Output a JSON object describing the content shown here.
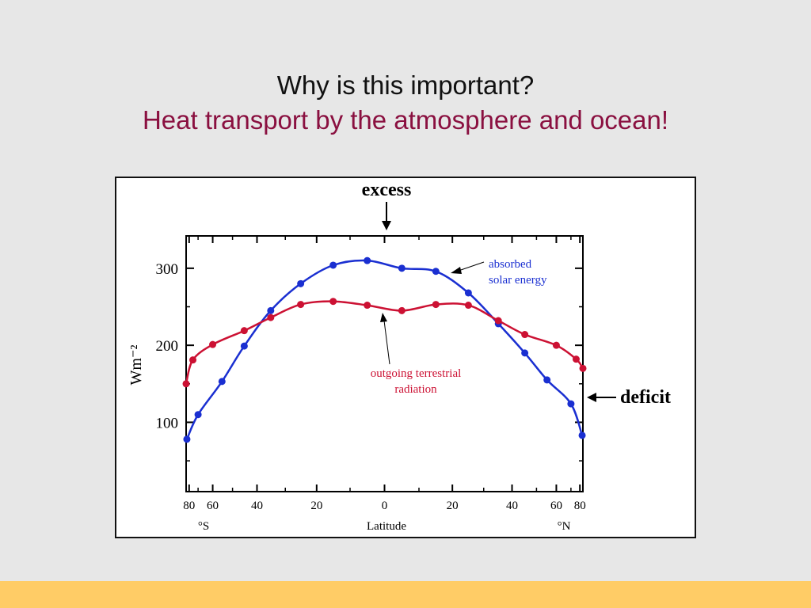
{
  "slide": {
    "title": "Why is this important?",
    "subtitle": "Heat transport by the atmosphere and ocean!",
    "colors": {
      "background": "#e7e7e7",
      "subtitle": "#8a1040",
      "footer_band": "#ffcc66"
    }
  },
  "chart_data": {
    "type": "line",
    "title": "",
    "xlabel": "Latitude",
    "ylabel": "Wm⁻²",
    "x_axis": {
      "ticks": [
        {
          "lat": -80,
          "label": "80"
        },
        {
          "lat": -60,
          "label": "60"
        },
        {
          "lat": -40,
          "label": "40"
        },
        {
          "lat": -20,
          "label": "20"
        },
        {
          "lat": 0,
          "label": "0"
        },
        {
          "lat": 20,
          "label": "20"
        },
        {
          "lat": 40,
          "label": "40"
        },
        {
          "lat": 60,
          "label": "60"
        },
        {
          "lat": 80,
          "label": "80"
        }
      ],
      "south_label": "°S",
      "north_label": "°N",
      "scale": "sine of latitude"
    },
    "y_axis": {
      "ticks": [
        {
          "value": 100,
          "label": "100"
        },
        {
          "value": 200,
          "label": "200"
        },
        {
          "value": 300,
          "label": "300"
        }
      ],
      "ylim": [
        10,
        342
      ]
    },
    "grid": false,
    "series": [
      {
        "key": "absorbed",
        "color": "#1a2fd1",
        "latitude": [
          -85,
          -70,
          -55,
          -45,
          -35,
          -25,
          -15,
          -5,
          5,
          15,
          25,
          35,
          45,
          55,
          70,
          85
        ],
        "values": [
          78,
          110,
          153,
          199,
          245,
          280,
          304,
          310,
          300,
          296,
          268,
          228,
          190,
          155,
          124,
          83
        ]
      },
      {
        "key": "outgoing",
        "color": "#cc1133",
        "latitude": [
          -90,
          -75,
          -60,
          -45,
          -35,
          -25,
          -15,
          -5,
          5,
          15,
          25,
          35,
          45,
          60,
          75,
          90
        ],
        "values": [
          150,
          181,
          201,
          219,
          236,
          253,
          257,
          252,
          245,
          253,
          252,
          232,
          214,
          200,
          182,
          170
        ]
      }
    ],
    "annotations": {
      "excess": "excess",
      "deficit": "deficit",
      "absorbed_line1": "absorbed",
      "absorbed_line2": "solar energy",
      "outgoing_line1": "outgoing terrestrial",
      "outgoing_line2": "radiation"
    }
  }
}
